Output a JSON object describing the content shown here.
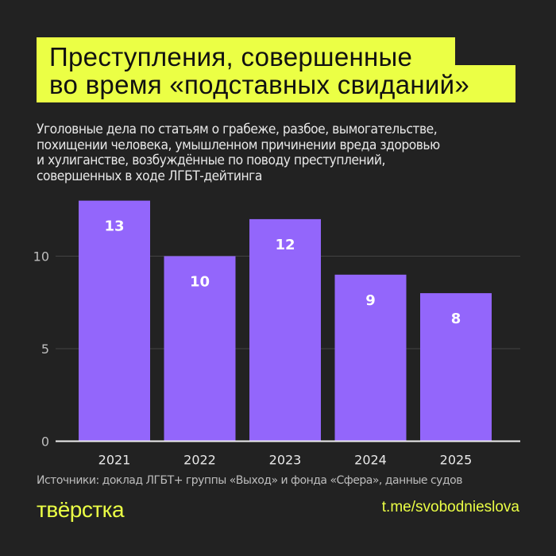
{
  "title_lines": [
    "Преступления, совершенные",
    "во время «подставных свиданий»"
  ],
  "subtitle_lines": [
    "Уголовные дела по статьям о грабеже, разбое, вымогательстве,",
    "похищении человека, умышленном причинении вреда здоровью",
    "и хулиганстве, возбуждённые по поводу преступлений,",
    "совершенных в ходе ЛГБТ-дейтинга"
  ],
  "source": "Источники: доклад ЛГБТ+ группы «Выход» и фонда «Сфера», данные судов",
  "logo": "тВЁрстка",
  "link": "t.me/svobodnieslova",
  "colors": {
    "background": "#222222",
    "accent": "#ebff45",
    "bar": "#9366fb"
  },
  "chart_data": {
    "type": "bar",
    "categories": [
      "2021",
      "2022",
      "2023",
      "2024",
      "2025"
    ],
    "values": [
      13,
      10,
      12,
      9,
      8
    ],
    "data_labels": [
      "13",
      "10",
      "12",
      "9",
      "8"
    ],
    "yticks": [
      0,
      5,
      10
    ],
    "ytick_labels": [
      "0",
      "5",
      "10"
    ],
    "ylim": [
      0,
      13
    ],
    "grid": true,
    "xlabel": "",
    "ylabel": ""
  }
}
